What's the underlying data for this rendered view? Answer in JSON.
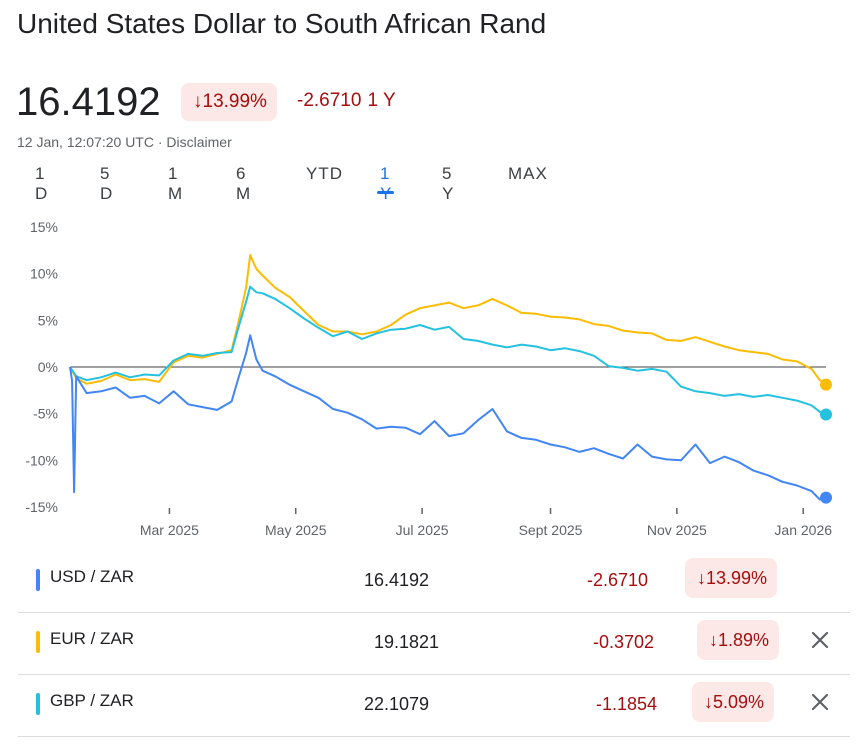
{
  "header": {
    "title": "United States Dollar to South African Rand",
    "price": "16.4192",
    "change_pct": "↓13.99%",
    "change_abs": "-2.6710",
    "change_period": "1 Y",
    "timestamp": "12 Jan, 12:07:20 UTC · Disclaimer"
  },
  "ranges": [
    {
      "label": "1 D",
      "active": false
    },
    {
      "label": "5 D",
      "active": false
    },
    {
      "label": "1 M",
      "active": false
    },
    {
      "label": "6 M",
      "active": false
    },
    {
      "label": "YTD",
      "active": false
    },
    {
      "label": "1 Y",
      "active": true
    },
    {
      "label": "5 Y",
      "active": false
    },
    {
      "label": "MAX",
      "active": false
    }
  ],
  "colors": {
    "usd": "#4285f4",
    "eur": "#fbbc04",
    "gbp": "#24c1e0",
    "negative": "#a50e0e",
    "negative_bg": "#fce8e6",
    "active_tab": "#1a73e8"
  },
  "chart_data": {
    "type": "line",
    "ylabel_format": "percent",
    "ylim": [
      -15,
      15
    ],
    "yticks": [
      "15%",
      "10%",
      "5%",
      "0%",
      "-5%",
      "-10%",
      "-15%"
    ],
    "ytick_values": [
      15,
      10,
      5,
      0,
      -5,
      -10,
      -15
    ],
    "xtick_labels": [
      "Mar 2025",
      "May 2025",
      "Jul 2025",
      "Sept 2025",
      "Nov 2025",
      "Jan 2026"
    ],
    "xtick_dates": [
      "2025-03-01",
      "2025-05-01",
      "2025-07-01",
      "2025-09-01",
      "2025-11-01",
      "2026-01-01"
    ],
    "x_range": [
      "2025-01-12",
      "2026-01-12"
    ],
    "baseline": 0,
    "grid": false,
    "series": [
      {
        "name": "EUR / ZAR",
        "color": "#fbbc04",
        "points": [
          [
            "2025-01-12",
            0
          ],
          [
            "2025-01-15",
            -1.2
          ],
          [
            "2025-01-20",
            -1.8
          ],
          [
            "2025-01-27",
            -1.5
          ],
          [
            "2025-02-03",
            -0.8
          ],
          [
            "2025-02-10",
            -1.4
          ],
          [
            "2025-02-17",
            -1.3
          ],
          [
            "2025-02-24",
            -1.6
          ],
          [
            "2025-03-03",
            0.5
          ],
          [
            "2025-03-10",
            1.2
          ],
          [
            "2025-03-17",
            1.0
          ],
          [
            "2025-03-24",
            1.4
          ],
          [
            "2025-03-31",
            1.8
          ],
          [
            "2025-04-03",
            4.5
          ],
          [
            "2025-04-07",
            8.5
          ],
          [
            "2025-04-09",
            12.0
          ],
          [
            "2025-04-12",
            10.5
          ],
          [
            "2025-04-15",
            9.8
          ],
          [
            "2025-04-21",
            8.5
          ],
          [
            "2025-04-28",
            7.5
          ],
          [
            "2025-05-05",
            6.0
          ],
          [
            "2025-05-12",
            4.5
          ],
          [
            "2025-05-19",
            3.8
          ],
          [
            "2025-05-26",
            3.8
          ],
          [
            "2025-06-02",
            3.5
          ],
          [
            "2025-06-09",
            3.8
          ],
          [
            "2025-06-16",
            4.5
          ],
          [
            "2025-06-23",
            5.6
          ],
          [
            "2025-06-30",
            6.3
          ],
          [
            "2025-07-07",
            6.6
          ],
          [
            "2025-07-14",
            6.9
          ],
          [
            "2025-07-21",
            6.3
          ],
          [
            "2025-07-28",
            6.6
          ],
          [
            "2025-08-04",
            7.3
          ],
          [
            "2025-08-11",
            6.6
          ],
          [
            "2025-08-18",
            5.8
          ],
          [
            "2025-08-25",
            5.7
          ],
          [
            "2025-09-01",
            5.4
          ],
          [
            "2025-09-08",
            5.3
          ],
          [
            "2025-09-15",
            5.1
          ],
          [
            "2025-09-22",
            4.6
          ],
          [
            "2025-09-29",
            4.4
          ],
          [
            "2025-10-06",
            3.9
          ],
          [
            "2025-10-13",
            3.7
          ],
          [
            "2025-10-20",
            3.6
          ],
          [
            "2025-10-27",
            2.9
          ],
          [
            "2025-11-03",
            2.8
          ],
          [
            "2025-11-10",
            3.2
          ],
          [
            "2025-11-17",
            2.7
          ],
          [
            "2025-11-24",
            2.2
          ],
          [
            "2025-12-01",
            1.8
          ],
          [
            "2025-12-08",
            1.6
          ],
          [
            "2025-12-15",
            1.4
          ],
          [
            "2025-12-22",
            0.8
          ],
          [
            "2025-12-29",
            0.6
          ],
          [
            "2026-01-05",
            -0.2
          ],
          [
            "2026-01-09",
            -1.4
          ],
          [
            "2026-01-12",
            -1.89
          ]
        ]
      },
      {
        "name": "GBP / ZAR",
        "color": "#24c1e0",
        "points": [
          [
            "2025-01-12",
            0
          ],
          [
            "2025-01-15",
            -1.0
          ],
          [
            "2025-01-20",
            -1.4
          ],
          [
            "2025-01-27",
            -1.1
          ],
          [
            "2025-02-03",
            -0.6
          ],
          [
            "2025-02-10",
            -1.1
          ],
          [
            "2025-02-17",
            -0.8
          ],
          [
            "2025-02-24",
            -0.9
          ],
          [
            "2025-03-03",
            0.7
          ],
          [
            "2025-03-10",
            1.4
          ],
          [
            "2025-03-17",
            1.2
          ],
          [
            "2025-03-24",
            1.5
          ],
          [
            "2025-03-31",
            1.6
          ],
          [
            "2025-04-03",
            4.0
          ],
          [
            "2025-04-07",
            7.0
          ],
          [
            "2025-04-09",
            8.6
          ],
          [
            "2025-04-12",
            8.0
          ],
          [
            "2025-04-15",
            7.9
          ],
          [
            "2025-04-21",
            7.3
          ],
          [
            "2025-04-28",
            6.3
          ],
          [
            "2025-05-05",
            5.2
          ],
          [
            "2025-05-12",
            4.2
          ],
          [
            "2025-05-19",
            3.3
          ],
          [
            "2025-05-26",
            3.8
          ],
          [
            "2025-06-02",
            3.0
          ],
          [
            "2025-06-09",
            3.6
          ],
          [
            "2025-06-16",
            4.0
          ],
          [
            "2025-06-23",
            4.1
          ],
          [
            "2025-06-30",
            4.5
          ],
          [
            "2025-07-07",
            4.0
          ],
          [
            "2025-07-14",
            4.3
          ],
          [
            "2025-07-21",
            3.0
          ],
          [
            "2025-07-28",
            2.8
          ],
          [
            "2025-08-04",
            2.4
          ],
          [
            "2025-08-11",
            2.1
          ],
          [
            "2025-08-18",
            2.4
          ],
          [
            "2025-08-25",
            2.2
          ],
          [
            "2025-09-01",
            1.8
          ],
          [
            "2025-09-08",
            2.0
          ],
          [
            "2025-09-15",
            1.7
          ],
          [
            "2025-09-22",
            1.2
          ],
          [
            "2025-09-29",
            0.1
          ],
          [
            "2025-10-06",
            -0.1
          ],
          [
            "2025-10-13",
            -0.4
          ],
          [
            "2025-10-20",
            -0.2
          ],
          [
            "2025-10-27",
            -0.5
          ],
          [
            "2025-11-03",
            -2.1
          ],
          [
            "2025-11-10",
            -2.6
          ],
          [
            "2025-11-17",
            -2.8
          ],
          [
            "2025-11-24",
            -3.1
          ],
          [
            "2025-12-01",
            -2.9
          ],
          [
            "2025-12-08",
            -3.2
          ],
          [
            "2025-12-15",
            -3.0
          ],
          [
            "2025-12-22",
            -3.3
          ],
          [
            "2025-12-29",
            -3.6
          ],
          [
            "2026-01-05",
            -4.1
          ],
          [
            "2026-01-09",
            -4.8
          ],
          [
            "2026-01-12",
            -5.09
          ]
        ]
      },
      {
        "name": "USD / ZAR",
        "color": "#4285f4",
        "points": [
          [
            "2025-01-12",
            0
          ],
          [
            "2025-01-13",
            -1.5
          ],
          [
            "2025-01-14",
            -13.4
          ],
          [
            "2025-01-15",
            -1.0
          ],
          [
            "2025-01-20",
            -2.8
          ],
          [
            "2025-01-27",
            -2.6
          ],
          [
            "2025-02-03",
            -2.2
          ],
          [
            "2025-02-10",
            -3.3
          ],
          [
            "2025-02-17",
            -3.1
          ],
          [
            "2025-02-24",
            -3.9
          ],
          [
            "2025-03-03",
            -2.6
          ],
          [
            "2025-03-10",
            -4.0
          ],
          [
            "2025-03-17",
            -4.3
          ],
          [
            "2025-03-24",
            -4.6
          ],
          [
            "2025-03-31",
            -3.7
          ],
          [
            "2025-04-03",
            -1.4
          ],
          [
            "2025-04-07",
            1.5
          ],
          [
            "2025-04-09",
            3.4
          ],
          [
            "2025-04-12",
            0.8
          ],
          [
            "2025-04-15",
            -0.4
          ],
          [
            "2025-04-21",
            -1.0
          ],
          [
            "2025-04-28",
            -1.9
          ],
          [
            "2025-05-05",
            -2.6
          ],
          [
            "2025-05-12",
            -3.3
          ],
          [
            "2025-05-19",
            -4.5
          ],
          [
            "2025-05-26",
            -4.9
          ],
          [
            "2025-06-02",
            -5.6
          ],
          [
            "2025-06-09",
            -6.6
          ],
          [
            "2025-06-16",
            -6.4
          ],
          [
            "2025-06-23",
            -6.5
          ],
          [
            "2025-06-30",
            -7.2
          ],
          [
            "2025-07-07",
            -5.8
          ],
          [
            "2025-07-14",
            -7.4
          ],
          [
            "2025-07-21",
            -7.1
          ],
          [
            "2025-07-28",
            -5.7
          ],
          [
            "2025-08-04",
            -4.5
          ],
          [
            "2025-08-11",
            -6.9
          ],
          [
            "2025-08-18",
            -7.6
          ],
          [
            "2025-08-25",
            -7.8
          ],
          [
            "2025-09-01",
            -8.3
          ],
          [
            "2025-09-08",
            -8.6
          ],
          [
            "2025-09-15",
            -9.1
          ],
          [
            "2025-09-22",
            -8.7
          ],
          [
            "2025-09-29",
            -9.3
          ],
          [
            "2025-10-06",
            -9.8
          ],
          [
            "2025-10-13",
            -8.3
          ],
          [
            "2025-10-20",
            -9.6
          ],
          [
            "2025-10-27",
            -9.9
          ],
          [
            "2025-11-03",
            -10.0
          ],
          [
            "2025-11-10",
            -8.3
          ],
          [
            "2025-11-17",
            -10.3
          ],
          [
            "2025-11-24",
            -9.6
          ],
          [
            "2025-12-01",
            -10.2
          ],
          [
            "2025-12-08",
            -11.1
          ],
          [
            "2025-12-15",
            -11.6
          ],
          [
            "2025-12-22",
            -12.3
          ],
          [
            "2025-12-29",
            -12.7
          ],
          [
            "2026-01-05",
            -13.3
          ],
          [
            "2026-01-09",
            -14.2
          ],
          [
            "2026-01-12",
            -13.99
          ]
        ]
      }
    ]
  },
  "pairs": [
    {
      "name": "USD / ZAR",
      "value": "16.4192",
      "abs": "-2.6710",
      "pct": "↓13.99%",
      "color": "#4285f4",
      "removable": false
    },
    {
      "name": "EUR / ZAR",
      "value": "19.1821",
      "abs": "-0.3702",
      "pct": "↓1.89%",
      "color": "#fbbc04",
      "removable": true
    },
    {
      "name": "GBP / ZAR",
      "value": "22.1079",
      "abs": "-1.1854",
      "pct": "↓5.09%",
      "color": "#24c1e0",
      "removable": true
    }
  ]
}
